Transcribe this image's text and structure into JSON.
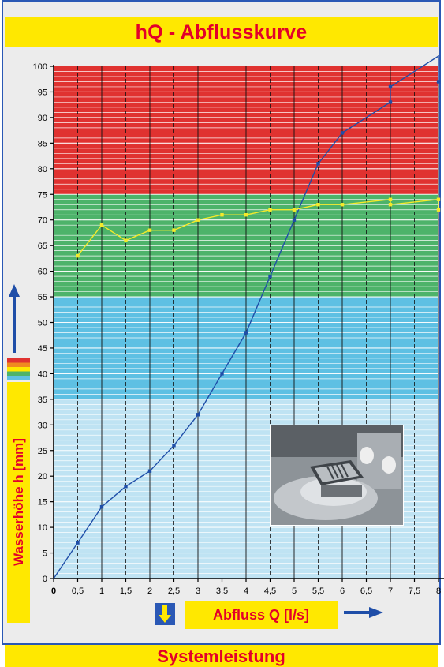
{
  "title": "hQ - Abflusskurve",
  "footer": "Systemleistung",
  "colors": {
    "band_red": "#e03230",
    "band_green": "#4db36a",
    "band_blue": "#5ec0e3",
    "band_lightblue": "#bfe3f3",
    "curve_blue": "#1f4ea8",
    "curve_yellow": "#f5ea2a",
    "label_red": "#e3002a",
    "label_yellow": "#ffe800"
  },
  "chart_data": {
    "type": "line",
    "xlabel": "Abfluss Q [l/s]",
    "ylabel": "Wasserhöhe h [mm]",
    "xlim": [
      0,
      8
    ],
    "ylim": [
      0,
      100
    ],
    "x_ticks": [
      "0",
      "0,5",
      "1",
      "1,5",
      "2",
      "2,5",
      "3",
      "3,5",
      "4",
      "4,5",
      "5",
      "5,5",
      "6",
      "6,5",
      "7",
      "7,5",
      "8"
    ],
    "y_ticks": [
      "0",
      "5",
      "10",
      "15",
      "20",
      "25",
      "30",
      "35",
      "40",
      "45",
      "50",
      "55",
      "60",
      "65",
      "70",
      "75",
      "80",
      "85",
      "90",
      "95",
      "100"
    ],
    "bands": [
      {
        "from": 75,
        "to": 100,
        "color": "#e03230"
      },
      {
        "from": 55,
        "to": 75,
        "color": "#4db36a"
      },
      {
        "from": 35,
        "to": 55,
        "color": "#5ec0e3"
      },
      {
        "from": 0,
        "to": 35,
        "color": "#bfe3f3"
      }
    ],
    "series": [
      {
        "color": "#1f4ea8",
        "x": [
          0,
          0.5,
          1,
          1.5,
          2,
          2.5,
          3,
          3.5,
          4,
          4.5,
          5,
          5.5,
          6,
          7,
          7,
          8,
          8
        ],
        "y": [
          0,
          7,
          14,
          18,
          21,
          26,
          32,
          40,
          48,
          59,
          70,
          81,
          87,
          93,
          96,
          102,
          97
        ],
        "markers": [
          0.5,
          1,
          1.5,
          2,
          2.5,
          3,
          3.5,
          4,
          4.5,
          5,
          5.5,
          6,
          7,
          7,
          8
        ]
      },
      {
        "color": "#f5ea2a",
        "x": [
          0.5,
          1,
          1.5,
          2,
          2.5,
          3,
          3.5,
          4,
          4.5,
          5,
          5.5,
          6,
          7,
          7,
          8,
          8
        ],
        "y": [
          63,
          69,
          66,
          68,
          68,
          70,
          71,
          71,
          72,
          72,
          73,
          73,
          74,
          73,
          74,
          72
        ],
        "markers": [
          0.5,
          1,
          1.5,
          2,
          2.5,
          3,
          3.5,
          4,
          4.5,
          5,
          5.5,
          6,
          7,
          7,
          8,
          8
        ]
      }
    ]
  },
  "photo_icon": "floor-drain-photo"
}
